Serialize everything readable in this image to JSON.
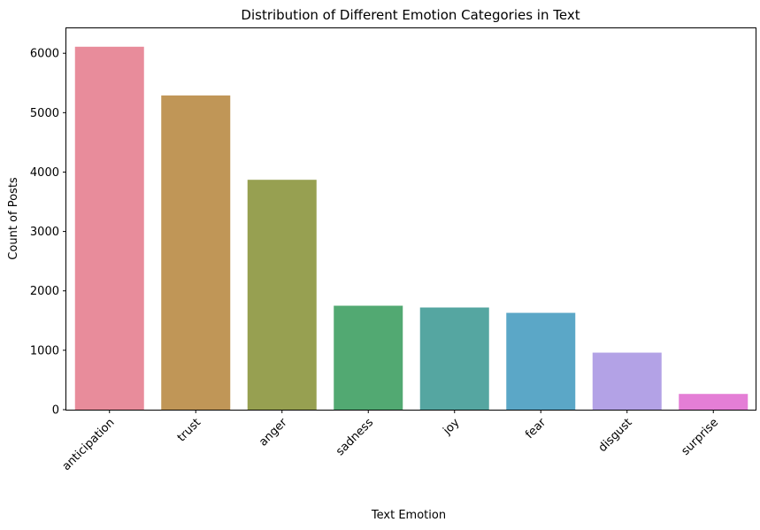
{
  "chart_data": {
    "type": "bar",
    "title": "Distribution of Different Emotion Categories in Text",
    "xlabel": "Text Emotion",
    "ylabel": "Count of Posts",
    "categories": [
      "anticipation",
      "trust",
      "anger",
      "sadness",
      "joy",
      "fear",
      "disgust",
      "surprise"
    ],
    "values": [
      6110,
      5290,
      3870,
      1750,
      1720,
      1630,
      960,
      265
    ],
    "colors": [
      "#e88c9b",
      "#c09657",
      "#97a051",
      "#52a972",
      "#55a6a1",
      "#5ba7c7",
      "#b3a2e6",
      "#e47ed6"
    ],
    "ylim": [
      0,
      6420
    ],
    "yticks": [
      0,
      1000,
      2000,
      3000,
      4000,
      5000,
      6000
    ],
    "ytick_labels": [
      "0",
      "1000",
      "2000",
      "3000",
      "4000",
      "5000",
      "6000"
    ],
    "xtick_rotation_deg": 45,
    "grid": false,
    "legend": "none"
  }
}
